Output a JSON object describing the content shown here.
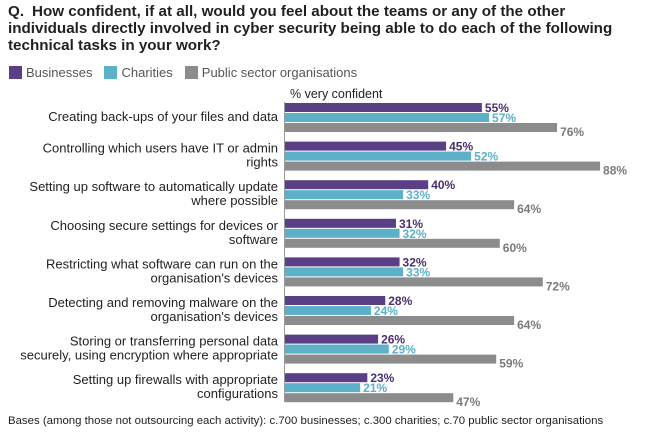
{
  "question": {
    "label": "Q.",
    "text": "How confident, if at all, would you feel about the teams or any of the other individuals directly involved in cyber security being able to do each of the following technical tasks in your work?"
  },
  "legend": [
    {
      "label": "Businesses",
      "color": "#5b3f86"
    },
    {
      "label": "Charities",
      "color": "#5cb0c8"
    },
    {
      "label": "Public sector organisations",
      "color": "#8c8c8c"
    }
  ],
  "subheading": "% very confident",
  "footnote": "Bases (among those not outsourcing each activity): c.700 businesses; c.300 charities; c.70 public sector organisations",
  "chart_data": {
    "type": "bar",
    "orientation": "horizontal",
    "xlim": [
      0,
      100
    ],
    "categories": [
      [
        "Creating back-ups of your files and data"
      ],
      [
        "Controlling which users have IT or admin",
        "rights"
      ],
      [
        "Setting up software to automatically update",
        "where possible"
      ],
      [
        "Choosing secure settings for devices or",
        "software"
      ],
      [
        "Restricting what software can run on the",
        "organisation's devices"
      ],
      [
        "Detecting and removing malware on the",
        "organisation's devices"
      ],
      [
        "Storing or transferring personal data",
        "securely, using encryption where appropriate"
      ],
      [
        "Setting up firewalls with appropriate",
        "configurations"
      ]
    ],
    "series": [
      {
        "name": "Businesses",
        "color": "#5b3f86",
        "label_color": "#4a3072",
        "values": [
          55,
          45,
          40,
          31,
          32,
          28,
          26,
          23
        ]
      },
      {
        "name": "Charities",
        "color": "#5cb0c8",
        "label_color": "#5cb0c8",
        "values": [
          57,
          52,
          33,
          32,
          33,
          24,
          29,
          21
        ]
      },
      {
        "name": "Public sector organisations",
        "color": "#8c8c8c",
        "label_color": "#7a7a7a",
        "values": [
          76,
          88,
          64,
          60,
          72,
          64,
          59,
          47
        ]
      }
    ],
    "value_suffix": "%"
  }
}
